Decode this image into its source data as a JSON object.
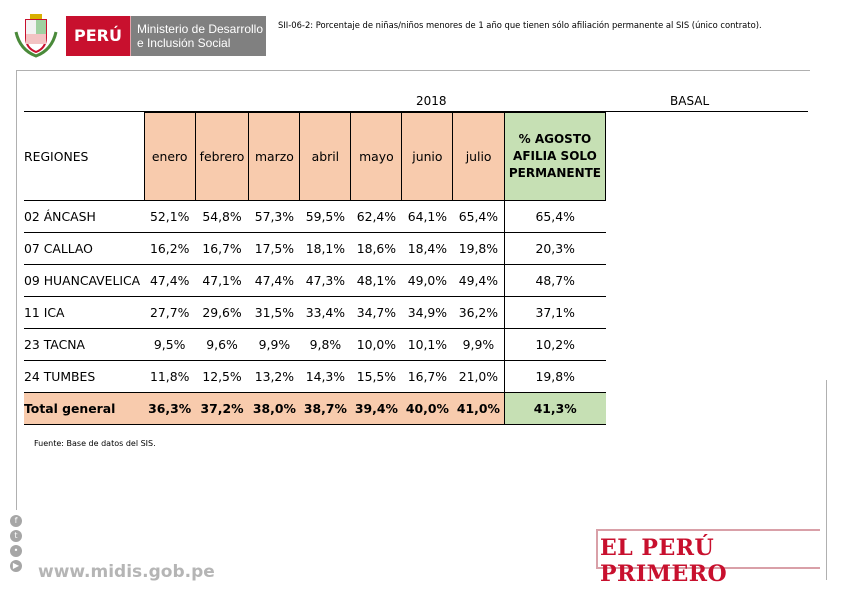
{
  "header": {
    "peru_label": "PERÚ",
    "ministry_line1": "Ministerio de Desarrollo",
    "ministry_line2": "e Inclusión Social",
    "title": "SII-06-2: Porcentaje de niñas/niños menores de 1 año que tienen sólo afiliación permanente al SIS (único contrato)."
  },
  "table": {
    "year_label": "2018",
    "basal_label": "BASAL",
    "columns": {
      "region": "REGIONES",
      "months": [
        "enero",
        "febrero",
        "marzo",
        "abril",
        "mayo",
        "junio",
        "julio"
      ],
      "august": "% AGOSTO AFILIA SOLO PERMANENTE"
    },
    "rows": [
      {
        "region": "02 ÁNCASH",
        "values": [
          "52,1%",
          "54,8%",
          "57,3%",
          "59,5%",
          "62,4%",
          "64,1%",
          "65,4%"
        ],
        "august": "65,4%"
      },
      {
        "region": "07 CALLAO",
        "values": [
          "16,2%",
          "16,7%",
          "17,5%",
          "18,1%",
          "18,6%",
          "18,4%",
          "19,8%"
        ],
        "august": "20,3%"
      },
      {
        "region": "09 HUANCAVELICA",
        "values": [
          "47,4%",
          "47,1%",
          "47,4%",
          "47,3%",
          "48,1%",
          "49,0%",
          "49,4%"
        ],
        "august": "48,7%"
      },
      {
        "region": "11 ICA",
        "values": [
          "27,7%",
          "29,6%",
          "31,5%",
          "33,4%",
          "34,7%",
          "34,9%",
          "36,2%"
        ],
        "august": "37,1%"
      },
      {
        "region": "23 TACNA",
        "values": [
          "9,5%",
          "9,6%",
          "9,9%",
          "9,8%",
          "10,0%",
          "10,1%",
          "9,9%"
        ],
        "august": "10,2%"
      },
      {
        "region": "24 TUMBES",
        "values": [
          "11,8%",
          "12,5%",
          "13,2%",
          "14,3%",
          "15,5%",
          "16,7%",
          "21,0%"
        ],
        "august": "19,8%"
      }
    ],
    "total": {
      "region": "Total general",
      "values": [
        "36,3%",
        "37,2%",
        "38,0%",
        "38,7%",
        "39,4%",
        "40,0%",
        "41,0%"
      ],
      "august": "41,3%"
    }
  },
  "source": "Fuente: Base de datos del SIS.",
  "footer": {
    "website": "www.midis.gob.pe",
    "slogan": "EL PERÚ PRIMERO",
    "social_icons": [
      "facebook-icon",
      "twitter-icon",
      "flickr-icon",
      "youtube-icon"
    ]
  },
  "colors": {
    "brand_red": "#c8102e",
    "header_fill": "#f8cbad",
    "basal_fill": "#c6e0b4"
  }
}
